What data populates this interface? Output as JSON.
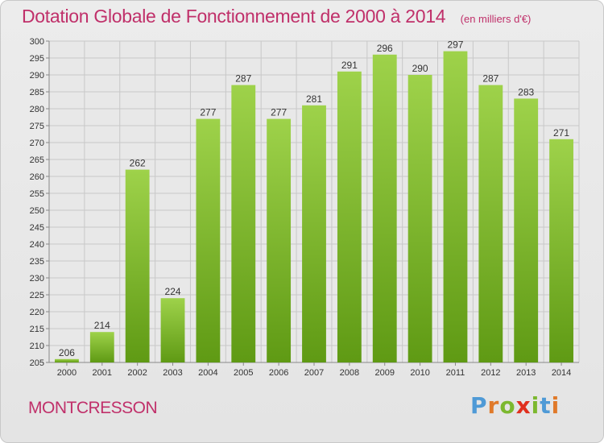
{
  "title": "Dotation Globale de Fonctionnement de 2000 à 2014",
  "subtitle": "(en milliers d'€)",
  "commune": "MONTCRESSON",
  "logo": {
    "letters": [
      "P",
      "r",
      "o",
      "x",
      "i",
      "t",
      "i"
    ],
    "colors": [
      "#4f9ad6",
      "#e07a2a",
      "#7cb82f",
      "#e0301e",
      "#7cb82f",
      "#4f9ad6",
      "#e07a2a"
    ]
  },
  "colors": {
    "title": "#c0306a",
    "bar_light": "#9ed24a",
    "bar_dark": "#5f9a14",
    "grid": "#c8c8c8"
  },
  "chart_data": {
    "type": "bar",
    "title": "Dotation Globale de Fonctionnement de 2000 à 2014",
    "subtitle": "(en milliers d'€)",
    "categories": [
      "2000",
      "2001",
      "2002",
      "2003",
      "2004",
      "2005",
      "2006",
      "2007",
      "2008",
      "2009",
      "2010",
      "2011",
      "2012",
      "2013",
      "2014"
    ],
    "values": [
      206,
      214,
      262,
      224,
      277,
      287,
      277,
      281,
      291,
      296,
      290,
      297,
      287,
      283,
      271
    ],
    "ylim": [
      205,
      300
    ],
    "yticks": [
      205,
      210,
      215,
      220,
      225,
      230,
      235,
      240,
      245,
      250,
      255,
      260,
      265,
      270,
      275,
      280,
      285,
      290,
      295,
      300
    ],
    "grid": true,
    "data_labels": true
  }
}
